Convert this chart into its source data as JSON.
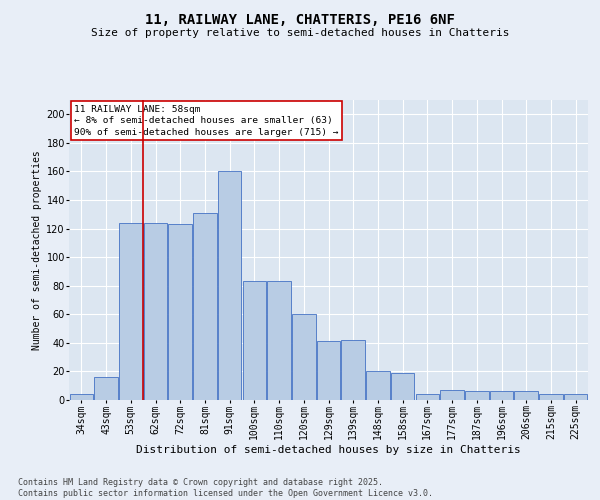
{
  "title_line1": "11, RAILWAY LANE, CHATTERIS, PE16 6NF",
  "title_line2": "Size of property relative to semi-detached houses in Chatteris",
  "xlabel": "Distribution of semi-detached houses by size in Chatteris",
  "ylabel": "Number of semi-detached properties",
  "categories": [
    "34sqm",
    "43sqm",
    "53sqm",
    "62sqm",
    "72sqm",
    "81sqm",
    "91sqm",
    "100sqm",
    "110sqm",
    "120sqm",
    "129sqm",
    "139sqm",
    "148sqm",
    "158sqm",
    "167sqm",
    "177sqm",
    "187sqm",
    "196sqm",
    "206sqm",
    "215sqm",
    "225sqm"
  ],
  "values": [
    4,
    16,
    124,
    124,
    123,
    131,
    160,
    83,
    83,
    60,
    41,
    42,
    20,
    19,
    4,
    7,
    6,
    6,
    6,
    4,
    4
  ],
  "bar_color": "#b8cce4",
  "bar_edge_color": "#4472c4",
  "vline_index": 2.5,
  "annotation_title": "11 RAILWAY LANE: 58sqm",
  "annotation_line1": "← 8% of semi-detached houses are smaller (63)",
  "annotation_line2": "90% of semi-detached houses are larger (715) →",
  "annotation_box_color": "#ffffff",
  "annotation_box_edge": "#cc0000",
  "vline_color": "#cc0000",
  "footnote_line1": "Contains HM Land Registry data © Crown copyright and database right 2025.",
  "footnote_line2": "Contains public sector information licensed under the Open Government Licence v3.0.",
  "ylim": [
    0,
    210
  ],
  "yticks": [
    0,
    20,
    40,
    60,
    80,
    100,
    120,
    140,
    160,
    180,
    200
  ],
  "background_color": "#e8eef7",
  "plot_bg_color": "#dce6f1",
  "title1_fontsize": 10,
  "title2_fontsize": 8,
  "ylabel_fontsize": 7,
  "xlabel_fontsize": 8,
  "tick_fontsize": 7,
  "footnote_fontsize": 6
}
